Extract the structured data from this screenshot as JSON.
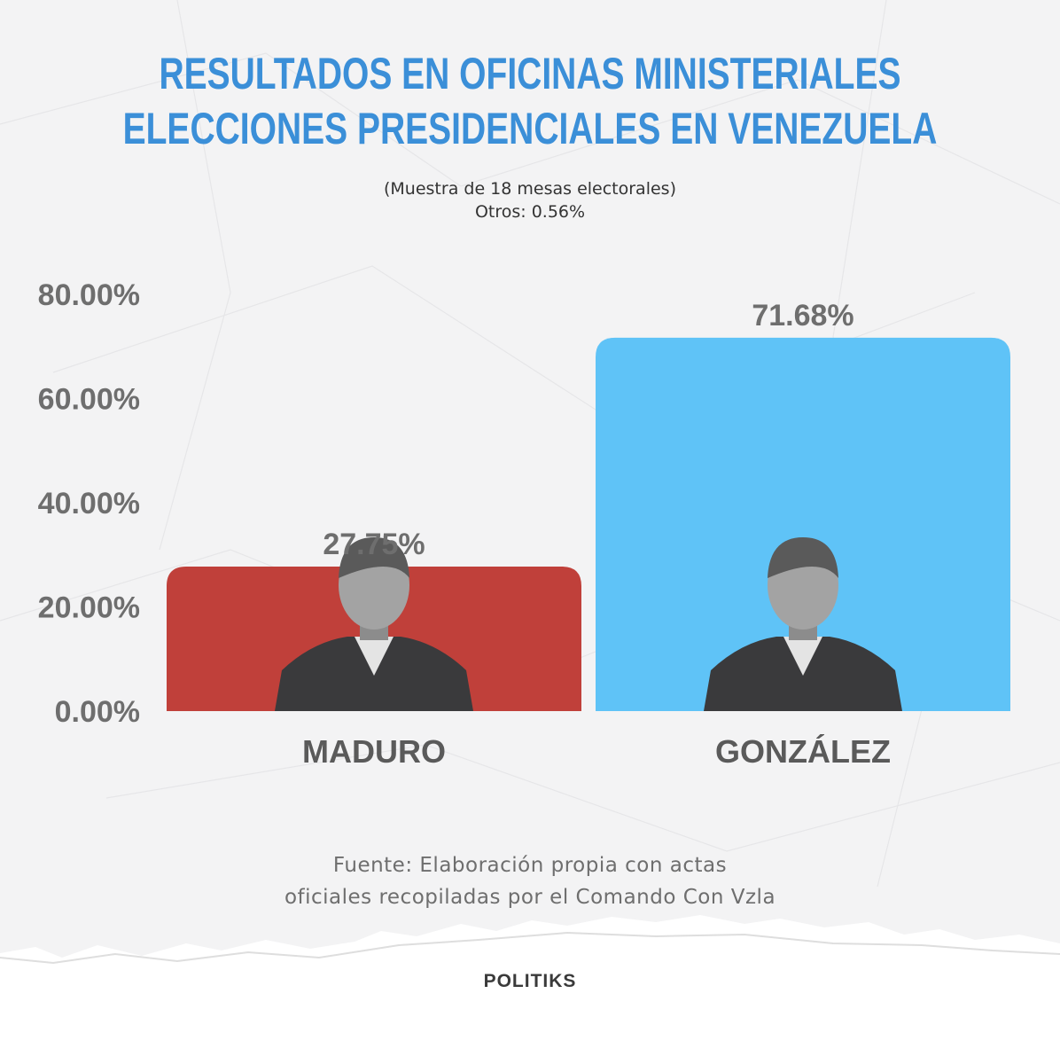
{
  "header": {
    "title_line1": "RESULTADOS EN OFICINAS MINISTERIALES",
    "title_line2": "ELECCIONES PRESIDENCIALES EN VENEZUELA",
    "subtitle_line1": "(Muestra de 18 mesas electorales)",
    "subtitle_line2": "Otros: 0.56%"
  },
  "chart_data": {
    "type": "bar",
    "categories": [
      "MADURO",
      "GONZÁLEZ"
    ],
    "values": [
      27.75,
      71.68
    ],
    "value_labels": [
      "27.75%",
      "71.68%"
    ],
    "ylim": [
      0,
      80
    ],
    "yticks": [
      0,
      20,
      40,
      60,
      80
    ],
    "ytick_labels": [
      "0.00%",
      "20.00%",
      "40.00%",
      "60.00%",
      "80.00%"
    ],
    "colors": [
      "#c0403a",
      "#5fc3f7"
    ],
    "grid": false,
    "legend": "none",
    "portraits": [
      "portrait-icon",
      "portrait-icon"
    ]
  },
  "footer": {
    "source_line1": "Fuente: Elaboración propia con actas",
    "source_line2": "oficiales recopiladas por el Comando Con Vzla",
    "brand": "POLITIKS"
  }
}
